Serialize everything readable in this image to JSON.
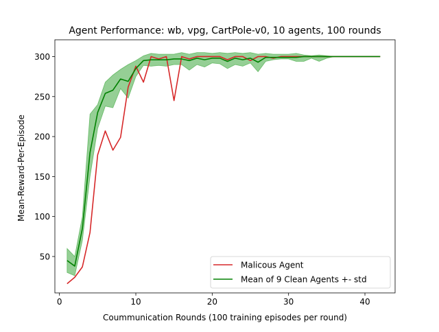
{
  "chart_data": {
    "type": "line",
    "title": "Agent Performance: wb, vpg, CartPole-v0, 10 agents, 100 rounds",
    "xlabel": "Coummunication Rounds (100 training episodes per round)",
    "ylabel": "Mean-Reward-Per-Episode",
    "xlim": [
      -0.6,
      43.95
    ],
    "ylim": [
      4.5,
      321
    ],
    "xticks": [
      0,
      10,
      20,
      30,
      40
    ],
    "yticks": [
      50,
      100,
      150,
      200,
      250,
      300
    ],
    "grid": false,
    "legend_position": "lower-right",
    "series": [
      {
        "name": "Malicous Agent",
        "color": "#d62728",
        "x": [
          1,
          2,
          3,
          4,
          5,
          6,
          7,
          8,
          9,
          10,
          11,
          12,
          13,
          14,
          15,
          16,
          17,
          18,
          19,
          20,
          21,
          22,
          23,
          24,
          25,
          26,
          27,
          28,
          29,
          30,
          31,
          32,
          33,
          34,
          35,
          36,
          37,
          38,
          39,
          40,
          41,
          42
        ],
        "values": [
          16,
          24,
          37,
          80,
          177,
          207,
          183,
          199,
          262,
          288,
          268,
          300,
          297,
          300,
          245,
          300,
          297,
          300,
          300,
          300,
          300,
          296,
          300,
          300,
          295,
          300,
          300,
          298,
          300,
          300,
          300,
          300,
          300,
          300,
          300,
          300,
          300,
          300,
          300,
          300,
          300,
          300
        ]
      },
      {
        "name": "Mean of 9 Clean Agents +- std",
        "color": "#008000",
        "band_color": "#2ca02c",
        "x": [
          1,
          2,
          3,
          4,
          5,
          6,
          7,
          8,
          9,
          10,
          11,
          12,
          13,
          14,
          15,
          16,
          17,
          18,
          19,
          20,
          21,
          22,
          23,
          24,
          25,
          26,
          27,
          28,
          29,
          30,
          31,
          32,
          33,
          34,
          35,
          36,
          37,
          38,
          39,
          40,
          41,
          42
        ],
        "values": [
          45,
          38,
          85,
          180,
          230,
          254,
          258,
          272,
          269,
          285,
          295,
          296,
          296,
          296,
          297,
          297,
          295,
          298,
          296,
          298,
          298,
          294,
          298,
          296,
          298,
          293,
          299,
          299,
          299,
          299,
          299,
          300,
          300,
          300,
          300,
          300,
          300,
          300,
          300,
          300,
          300,
          300
        ],
        "upper": [
          60,
          50,
          100,
          228,
          240,
          268,
          277,
          284,
          290,
          295,
          301,
          304,
          303,
          303,
          303,
          305,
          303,
          305,
          305,
          304,
          305,
          304,
          305,
          304,
          305,
          303,
          304,
          303,
          303,
          303,
          304,
          302,
          301,
          302,
          301,
          300,
          300,
          300,
          300,
          300,
          300,
          300
        ],
        "lower": [
          30,
          26,
          70,
          150,
          210,
          238,
          236,
          260,
          248,
          275,
          289,
          288,
          289,
          288,
          290,
          290,
          283,
          290,
          287,
          292,
          291,
          285,
          290,
          288,
          292,
          281,
          294,
          296,
          297,
          297,
          294,
          294,
          298,
          294,
          298,
          300,
          300,
          300,
          300,
          300,
          300,
          300
        ]
      }
    ]
  }
}
